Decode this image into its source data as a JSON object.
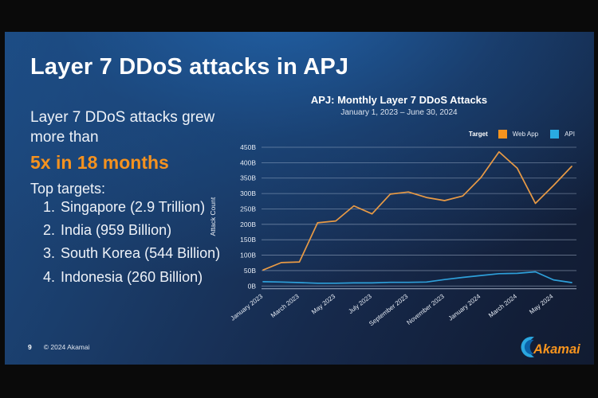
{
  "slide": {
    "title": "Layer 7 DDoS attacks in APJ",
    "intro_line": "Layer 7 DDoS attacks grew more than",
    "highlight": "5x in 18 months",
    "targets_heading": "Top targets:",
    "targets": [
      "Singapore (2.9 Trillion)",
      "India (959 Billion)",
      "South Korea (544 Billion)",
      "Indonesia (260 Billion)"
    ]
  },
  "footer": {
    "page_number": "9",
    "copyright": "© 2024 Akamai",
    "logo_text": "Akamai"
  },
  "colors": {
    "accent_orange": "#f5921f",
    "web_app_line": "#e89a45",
    "web_app_swatch": "#f7941e",
    "api_line": "#2e9fd9",
    "api_swatch": "#29abe2",
    "grid_line": "rgba(190,205,228,0.5)",
    "axis_text": "#e6ecf5",
    "slide_bg_dark": "#111b31",
    "slide_bg_bright": "#1d4b82"
  },
  "chart_data": {
    "type": "line",
    "title": "APJ: Monthly Layer 7 DDoS Attacks",
    "subtitle": "January 1, 2023 – June 30, 2024",
    "ylabel": "Attack Count",
    "legend_title": "Target",
    "legend_position": "top-right",
    "grid": true,
    "ylim": [
      0,
      450
    ],
    "y_tick_step": 50,
    "y_unit_suffix": "B",
    "x_tick_every": 2,
    "x": [
      "January 2023",
      "February 2023",
      "March 2023",
      "April 2023",
      "May 2023",
      "June 2023",
      "July 2023",
      "August 2023",
      "September 2023",
      "October 2023",
      "November 2023",
      "December 2023",
      "January 2024",
      "February 2024",
      "March 2024",
      "April 2024",
      "May 2024",
      "June 2024"
    ],
    "series": [
      {
        "name": "Web App",
        "color": "#e89a45",
        "swatch": "#f7941e",
        "values": [
          52,
          76,
          78,
          205,
          211,
          260,
          234,
          298,
          305,
          287,
          277,
          292,
          352,
          435,
          382,
          268,
          326,
          388
        ]
      },
      {
        "name": "API",
        "color": "#2e9fd9",
        "swatch": "#29abe2",
        "values": [
          14,
          13,
          11,
          9,
          9,
          10,
          10,
          12,
          12,
          13,
          21,
          28,
          34,
          40,
          41,
          46,
          20,
          11
        ]
      }
    ]
  }
}
